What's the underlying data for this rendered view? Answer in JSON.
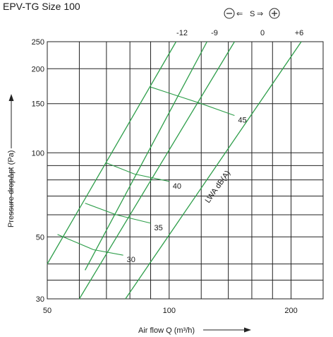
{
  "chart_data": {
    "type": "line",
    "title": "EPV-TG Size 100",
    "xlabel": "Air flow Q (m³/h)",
    "ylabel": "Pressure dropΔpt (Pa)",
    "xscale": "log",
    "yscale": "log",
    "xlim": [
      50,
      240
    ],
    "ylim": [
      30,
      250
    ],
    "x_ticks": [
      50,
      100,
      200
    ],
    "y_ticks": [
      30,
      50,
      100,
      150,
      200,
      250
    ],
    "x_grid": [
      50,
      60,
      70,
      80,
      90,
      100,
      120,
      140,
      160,
      180,
      200,
      240
    ],
    "y_grid": [
      30,
      35,
      40,
      50,
      60,
      70,
      80,
      90,
      100,
      150,
      200,
      250
    ],
    "top_axis_label_tokens": [
      "S"
    ],
    "legend": "top-right",
    "series": [
      {
        "name": "-12",
        "x": [
          50,
          104
        ],
        "y": [
          40,
          250
        ]
      },
      {
        "name": "-9",
        "x": [
          62,
          124
        ],
        "y": [
          38,
          250
        ]
      },
      {
        "name": "0",
        "x": [
          60,
          145
        ],
        "y": [
          30,
          250
        ]
      },
      {
        "name": "+6",
        "x": [
          78,
          212
        ],
        "y": [
          30,
          250
        ]
      }
    ],
    "contours": [
      {
        "label": "45",
        "x": [
          90,
          120,
          145
        ],
        "y": [
          172,
          150,
          136
        ]
      },
      {
        "label": "40",
        "x": [
          70,
          82,
          100
        ],
        "y": [
          92,
          84,
          79
        ]
      },
      {
        "label": "35",
        "x": [
          62,
          74,
          90
        ],
        "y": [
          66,
          60,
          56
        ]
      },
      {
        "label": "30",
        "x": [
          53,
          65,
          77
        ],
        "y": [
          51,
          45,
          43
        ]
      }
    ],
    "annotations": [
      {
        "text": "LWA dB(A)"
      }
    ]
  }
}
